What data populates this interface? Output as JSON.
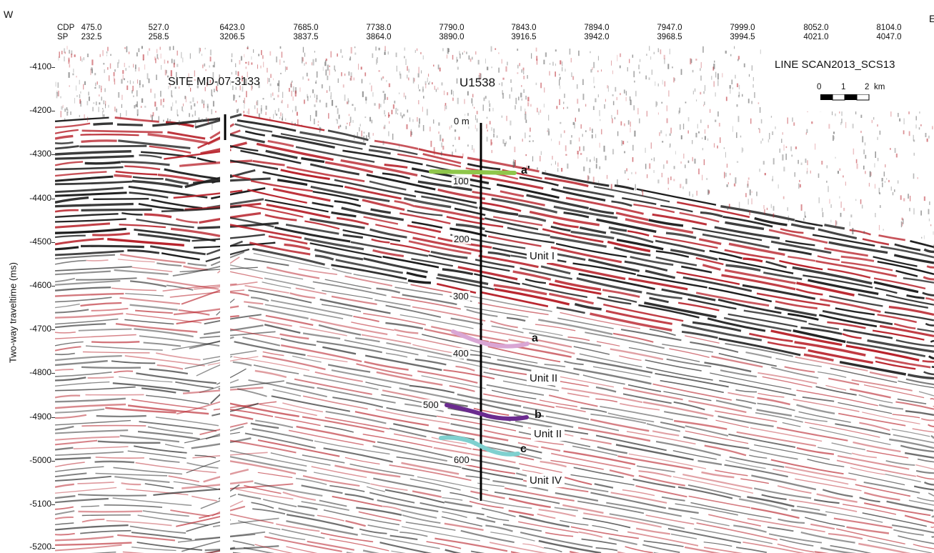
{
  "compass": {
    "west": "W",
    "east": "E"
  },
  "header": {
    "cdp_prefix": "CDP",
    "sp_prefix": "SP",
    "columns": [
      {
        "cdp": "475.0",
        "sp": "232.5"
      },
      {
        "cdp": "527.0",
        "sp": "258.5"
      },
      {
        "cdp": "6423.0",
        "sp": "3206.5"
      },
      {
        "cdp": "7685.0",
        "sp": "3837.5"
      },
      {
        "cdp": "7738.0",
        "sp": "3864.0"
      },
      {
        "cdp": "7790.0",
        "sp": "3890.0"
      },
      {
        "cdp": "7843.0",
        "sp": "3916.5"
      },
      {
        "cdp": "7894.0",
        "sp": "3942.0"
      },
      {
        "cdp": "7947.0",
        "sp": "3968.5"
      },
      {
        "cdp": "7999.0",
        "sp": "3994.5"
      },
      {
        "cdp": "8052.0",
        "sp": "4021.0"
      },
      {
        "cdp": "8104.0",
        "sp": "4047.0"
      }
    ]
  },
  "y_axis": {
    "label": "Two-way traveltime (ms)",
    "ticks": [
      "-4100",
      "-4200",
      "-4300",
      "-4400",
      "-4500",
      "-4600",
      "-4700",
      "-4800",
      "-4900",
      "-5000",
      "-5100",
      "-5200"
    ],
    "range_ms": [
      -4063,
      -5206
    ]
  },
  "sites": {
    "md": "SITE MD-07-3133",
    "u1538": "U1538"
  },
  "depth_labels": [
    "0 m",
    "100",
    "200",
    "300",
    "400",
    "500",
    "600"
  ],
  "units": [
    "Unit I",
    "Unit II",
    "Unit II",
    "Unit IV"
  ],
  "horizons": [
    {
      "label": "a'",
      "color": "#8fc64a"
    },
    {
      "label": "a",
      "color": "#d9a6d4"
    },
    {
      "label": "b",
      "color": "#6b2b8f"
    },
    {
      "label": "c",
      "color": "#7fd0cf"
    }
  ],
  "legend": {
    "line_title": "LINE SCAN2013_SCS13",
    "scale_labels": [
      "0",
      "1",
      "2",
      "km"
    ]
  },
  "colors": {
    "reflector_dark": "#1c1c1c",
    "reflector_red": "#b8232c",
    "background": "#ffffff"
  }
}
